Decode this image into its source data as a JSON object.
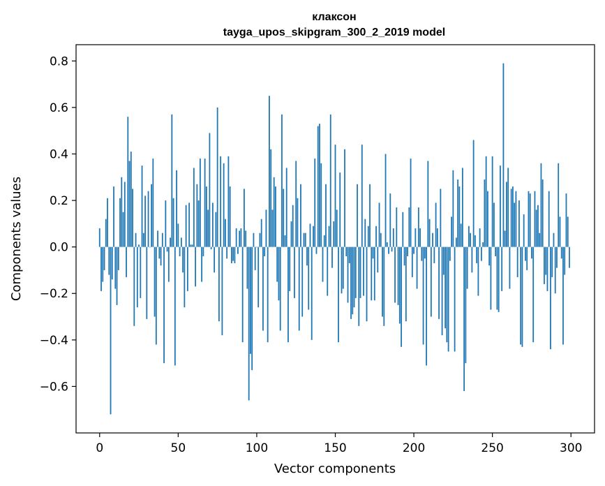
{
  "chart_data": {
    "type": "bar",
    "title": "клаксон",
    "subtitle": "tayga_upos_skipgram_300_2_2019 model",
    "xlabel": "Vector components",
    "ylabel": "Components values",
    "xlim": [
      -15,
      315
    ],
    "ylim": [
      -0.8,
      0.87
    ],
    "xticks": [
      0,
      50,
      100,
      150,
      200,
      250,
      300
    ],
    "yticks": [
      -0.6,
      -0.4,
      -0.2,
      0.0,
      0.2,
      0.4,
      0.6,
      0.8
    ],
    "ytick_labels": [
      "−0.6",
      "−0.4",
      "−0.2",
      "0.0",
      "0.2",
      "0.4",
      "0.6",
      "0.8"
    ],
    "grid": false,
    "bar_color": "#1f77b4",
    "series": [
      {
        "values": [
          0.08,
          -0.19,
          -0.15,
          -0.1,
          0.12,
          0.21,
          -0.12,
          -0.72,
          -0.14,
          0.26,
          -0.18,
          -0.25,
          -0.1,
          0.21,
          0.3,
          0.15,
          0.28,
          -0.13,
          0.56,
          0.37,
          0.41,
          0.25,
          -0.34,
          0.06,
          -0.26,
          0.01,
          -0.22,
          0.35,
          0.06,
          0.22,
          -0.31,
          0.24,
          0.0,
          0.27,
          0.38,
          -0.3,
          -0.42,
          0.07,
          -0.05,
          -0.08,
          0.06,
          -0.5,
          0.2,
          -0.02,
          -0.15,
          0.04,
          0.57,
          0.21,
          -0.51,
          0.33,
          0.1,
          -0.04,
          0.04,
          -0.11,
          -0.26,
          0.18,
          -0.19,
          0.19,
          0.01,
          0.01,
          0.34,
          -0.17,
          0.27,
          0.2,
          0.38,
          -0.15,
          -0.04,
          0.38,
          0.26,
          0.16,
          0.49,
          -0.01,
          0.19,
          -0.11,
          0.15,
          0.6,
          -0.32,
          0.39,
          -0.38,
          0.36,
          0.12,
          -0.05,
          0.39,
          0.26,
          -0.07,
          -0.06,
          -0.07,
          0.08,
          -0.03,
          0.07,
          0.08,
          -0.41,
          0.25,
          0.07,
          -0.18,
          -0.66,
          -0.46,
          -0.53,
          0.06,
          -0.1,
          0.0,
          -0.26,
          0.06,
          0.12,
          -0.36,
          -0.04,
          0.16,
          -0.41,
          0.65,
          0.42,
          0.16,
          0.3,
          0.26,
          -0.15,
          -0.23,
          -0.36,
          0.57,
          0.25,
          0.05,
          0.34,
          -0.41,
          -0.19,
          0.11,
          0.18,
          -0.22,
          0.37,
          0.21,
          -0.36,
          0.27,
          -0.3,
          0.06,
          0.06,
          -0.08,
          -0.27,
          0.1,
          -0.4,
          0.09,
          0.38,
          -0.03,
          0.52,
          0.53,
          0.36,
          -0.15,
          0.05,
          0.27,
          -0.21,
          0.09,
          0.57,
          -0.09,
          0.11,
          0.44,
          0.16,
          -0.41,
          0.32,
          -0.2,
          -0.18,
          0.42,
          -0.04,
          -0.24,
          -0.07,
          -0.31,
          -0.29,
          -0.26,
          -0.22,
          0.27,
          -0.34,
          -0.22,
          0.44,
          -0.21,
          0.12,
          -0.32,
          0.09,
          0.27,
          -0.23,
          -0.05,
          -0.23,
          0.09,
          -0.11,
          0.19,
          0.06,
          -0.3,
          -0.34,
          0.4,
          0.02,
          -0.03,
          0.23,
          -0.02,
          0.08,
          -0.24,
          0.17,
          -0.25,
          -0.33,
          -0.43,
          0.15,
          -0.08,
          -0.32,
          -0.04,
          0.17,
          0.38,
          -0.13,
          -0.03,
          0.08,
          -0.18,
          0.17,
          0.08,
          -0.06,
          -0.42,
          -0.05,
          -0.51,
          0.37,
          0.12,
          -0.3,
          0.06,
          -0.07,
          0.19,
          0.08,
          -0.31,
          0.25,
          -0.38,
          -0.12,
          -0.35,
          -0.41,
          -0.45,
          -0.06,
          0.13,
          0.33,
          -0.45,
          0.04,
          0.29,
          0.26,
          0.1,
          0.34,
          -0.62,
          -0.5,
          -0.18,
          0.09,
          0.06,
          -0.11,
          0.46,
          0.05,
          -0.07,
          -0.21,
          0.08,
          -0.06,
          0.02,
          0.29,
          0.39,
          0.24,
          -0.08,
          -0.27,
          0.39,
          0.19,
          -0.04,
          -0.27,
          -0.28,
          0.35,
          -0.19,
          0.79,
          0.07,
          0.28,
          0.34,
          -0.18,
          0.25,
          0.26,
          0.19,
          0.24,
          -0.13,
          0.2,
          -0.42,
          -0.43,
          0.14,
          -0.06,
          -0.1,
          0.24,
          0.23,
          -0.05,
          -0.41,
          0.24,
          0.16,
          0.18,
          0.06,
          0.36,
          0.29,
          -0.16,
          -0.12,
          -0.19,
          0.24,
          -0.44,
          -0.13,
          0.06,
          -0.2,
          -0.09,
          0.36,
          0.13,
          -0.05,
          -0.42,
          -0.12,
          0.23,
          0.13,
          -0.09
        ]
      }
    ]
  }
}
